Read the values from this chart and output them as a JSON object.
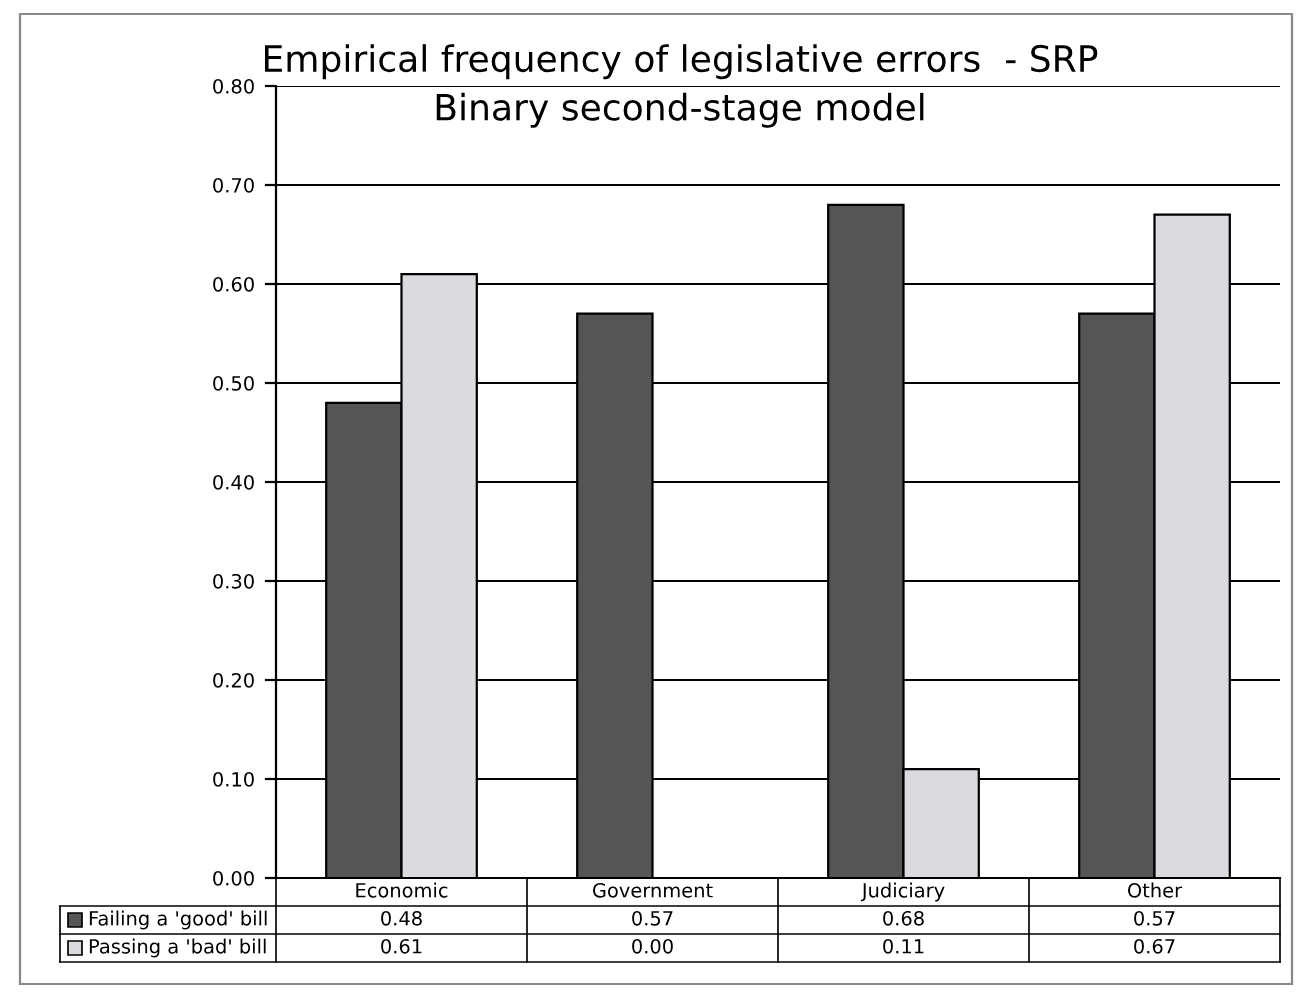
{
  "chart_data": {
    "type": "bar",
    "title": "Empirical frequency of legislative errors  - SRP\nBinary second-stage model",
    "categories": [
      "Economic",
      "Government",
      "Judiciary",
      "Other"
    ],
    "series": [
      {
        "name": "Failing a 'good' bill",
        "color": "#555555",
        "values": [
          0.48,
          0.57,
          0.68,
          0.57
        ],
        "value_labels": [
          "0.48",
          "0.57",
          "0.68",
          "0.57"
        ]
      },
      {
        "name": "Passing a 'bad' bill",
        "color": "#dcdadf",
        "values": [
          0.61,
          0.0,
          0.11,
          0.67
        ],
        "value_labels": [
          "0.61",
          "0.00",
          "0.11",
          "0.67"
        ]
      }
    ],
    "ylim": [
      0,
      0.8
    ],
    "yticks": [
      {
        "value": 0,
        "label": "0.00"
      },
      {
        "value": 0.1,
        "label": "0.10"
      },
      {
        "value": 0.2,
        "label": "0.20"
      },
      {
        "value": 0.3,
        "label": "0.30"
      },
      {
        "value": 0.4,
        "label": "0.40"
      },
      {
        "value": 0.5,
        "label": "0.50"
      },
      {
        "value": 0.6,
        "label": "0.60"
      },
      {
        "value": 0.7,
        "label": "0.70"
      },
      {
        "value": 0.8,
        "label": "0.80"
      }
    ],
    "grid": "y",
    "legend": "bottom"
  }
}
